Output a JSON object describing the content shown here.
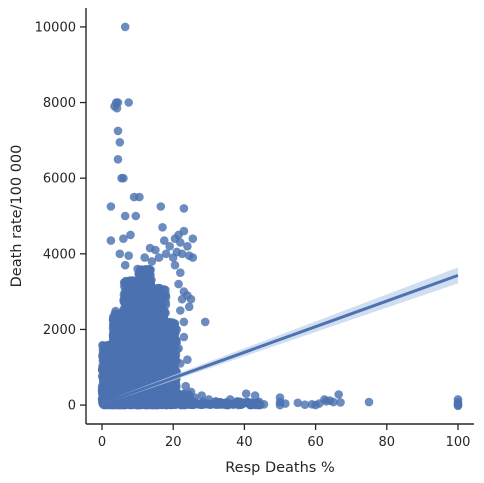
{
  "chart_data": {
    "type": "scatter",
    "title": "",
    "xlabel": "Resp Deaths %",
    "ylabel": "Death rate/100 000",
    "xlim": [
      -4.5,
      104.5
    ],
    "ylim": [
      -500,
      10500
    ],
    "xticks": [
      0,
      20,
      40,
      60,
      80,
      100
    ],
    "yticks": [
      0,
      2000,
      4000,
      6000,
      8000,
      10000
    ],
    "grid": false,
    "legend": "none",
    "colors": {
      "points": "#4c72b0",
      "line": "#4c72b0",
      "band": "#c2d3ec",
      "axis": "#262626"
    },
    "regression": {
      "x": [
        0,
        100
      ],
      "y": [
        40,
        3430
      ],
      "ci_halfwidth": [
        35,
        210
      ]
    },
    "points": [
      [
        6.5,
        10000
      ],
      [
        3.5,
        7900
      ],
      [
        4.0,
        8000
      ],
      [
        4.5,
        8000
      ],
      [
        7.5,
        8000
      ],
      [
        4.2,
        7850
      ],
      [
        4.5,
        7250
      ],
      [
        5.0,
        6950
      ],
      [
        4.5,
        6500
      ],
      [
        5.5,
        6000
      ],
      [
        6.0,
        6000
      ],
      [
        9.0,
        5500
      ],
      [
        10.5,
        5500
      ],
      [
        2.5,
        5250
      ],
      [
        6.5,
        5000
      ],
      [
        9.5,
        5000
      ],
      [
        16.5,
        5250
      ],
      [
        23.0,
        5200
      ],
      [
        2.5,
        4350
      ],
      [
        6.0,
        4400
      ],
      [
        8.0,
        4500
      ],
      [
        13.5,
        4150
      ],
      [
        17.0,
        4700
      ],
      [
        17.5,
        4350
      ],
      [
        20.5,
        4400
      ],
      [
        21.5,
        4500
      ],
      [
        22.0,
        4300
      ],
      [
        23.0,
        4600
      ],
      [
        24.0,
        4200
      ],
      [
        25.5,
        4400
      ],
      [
        5.0,
        4000
      ],
      [
        6.5,
        3700
      ],
      [
        7.5,
        3950
      ],
      [
        10.0,
        3600
      ],
      [
        12.0,
        3900
      ],
      [
        14.0,
        3800
      ],
      [
        15.0,
        4100
      ],
      [
        16.0,
        3900
      ],
      [
        18.0,
        4000
      ],
      [
        19.0,
        4200
      ],
      [
        20.0,
        3900
      ],
      [
        21.0,
        4050
      ],
      [
        22.5,
        4000
      ],
      [
        24.5,
        3950
      ],
      [
        25.5,
        3900
      ],
      [
        20.5,
        3700
      ],
      [
        22.0,
        3500
      ],
      [
        21.5,
        3200
      ],
      [
        23.0,
        3000
      ],
      [
        22.5,
        2800
      ],
      [
        24.0,
        2900
      ],
      [
        25.0,
        2800
      ],
      [
        22.0,
        2500
      ],
      [
        24.5,
        2600
      ],
      [
        23.0,
        2200
      ],
      [
        29.0,
        2200
      ],
      [
        21.0,
        2000
      ],
      [
        23.0,
        1800
      ],
      [
        21.5,
        1500
      ],
      [
        24.0,
        1200
      ],
      [
        22.0,
        1100
      ],
      [
        20.5,
        1250
      ],
      [
        25.0,
        350
      ],
      [
        23.5,
        500
      ],
      [
        26.0,
        200
      ],
      [
        28.0,
        250
      ],
      [
        30.0,
        150
      ],
      [
        32.0,
        100
      ],
      [
        34.0,
        50
      ],
      [
        36.0,
        150
      ],
      [
        38.0,
        100
      ],
      [
        39.5,
        40
      ],
      [
        40.5,
        300
      ],
      [
        42.0,
        60
      ],
      [
        43.0,
        250
      ],
      [
        44.0,
        0
      ],
      [
        45.5,
        20
      ],
      [
        50.0,
        200
      ],
      [
        50.0,
        80
      ],
      [
        50.0,
        0
      ],
      [
        51.5,
        40
      ],
      [
        55.0,
        60
      ],
      [
        57.0,
        10
      ],
      [
        59.0,
        20
      ],
      [
        60.0,
        0
      ],
      [
        61.0,
        40
      ],
      [
        62.5,
        150
      ],
      [
        63.0,
        100
      ],
      [
        64.0,
        120
      ],
      [
        65.0,
        80
      ],
      [
        66.5,
        280
      ],
      [
        67.0,
        70
      ],
      [
        75.0,
        80
      ],
      [
        100.0,
        150
      ],
      [
        100.0,
        80
      ],
      [
        100.0,
        30
      ],
      [
        100.0,
        0
      ],
      [
        100.0,
        -20
      ]
    ],
    "cloud": [
      {
        "x": [
          0,
          3
        ],
        "y": [
          0,
          1600
        ],
        "n": 320
      },
      {
        "x": [
          3,
          6
        ],
        "y": [
          0,
          2500
        ],
        "n": 450
      },
      {
        "x": [
          6,
          10
        ],
        "y": [
          0,
          3300
        ],
        "n": 650
      },
      {
        "x": [
          10,
          14
        ],
        "y": [
          0,
          3600
        ],
        "n": 650
      },
      {
        "x": [
          14,
          18
        ],
        "y": [
          0,
          3100
        ],
        "n": 500
      },
      {
        "x": [
          18,
          21
        ],
        "y": [
          0,
          2200
        ],
        "n": 240
      },
      {
        "x": [
          0,
          25
        ],
        "y": [
          0,
          300
        ],
        "n": 500
      },
      {
        "x": [
          25,
          45
        ],
        "y": [
          0,
          90
        ],
        "n": 90
      }
    ]
  }
}
